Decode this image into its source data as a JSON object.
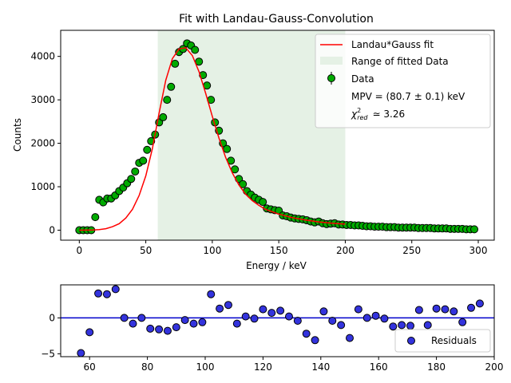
{
  "chart_data": [
    {
      "type": "scatter",
      "title": "Fit with Landau-Gauss-Convolution",
      "xlabel": "Energy / keV",
      "ylabel": "Counts",
      "xlim": [
        -14,
        312
      ],
      "ylim": [
        -230,
        4600
      ],
      "xticks": [
        0,
        50,
        100,
        150,
        200,
        250,
        300
      ],
      "yticks": [
        0,
        1000,
        2000,
        3000,
        4000
      ],
      "grid": false,
      "legend_position": "top-right",
      "fit_range": [
        59,
        200
      ],
      "fit_range_color": "#e5f1e5",
      "data_color": "#00aa00",
      "fit_color": "#ff0000",
      "series": [
        {
          "name": "Data",
          "kind": "points-with-errorbars",
          "x": [
            0,
            3,
            6,
            9,
            12,
            15,
            18,
            21,
            24,
            27,
            30,
            33,
            36,
            39,
            42,
            45,
            48,
            51,
            54,
            57,
            60,
            63,
            66,
            69,
            72,
            75,
            78,
            81,
            84,
            87,
            90,
            93,
            96,
            99,
            102,
            105,
            108,
            111,
            114,
            117,
            120,
            123,
            126,
            129,
            132,
            135,
            138,
            141,
            144,
            147,
            150,
            153,
            156,
            159,
            162,
            165,
            168,
            171,
            174,
            177,
            180,
            183,
            186,
            189,
            192,
            195,
            198,
            201,
            204,
            207,
            210,
            213,
            216,
            219,
            222,
            225,
            228,
            231,
            234,
            237,
            240,
            243,
            246,
            249,
            252,
            255,
            258,
            261,
            264,
            267,
            270,
            273,
            276,
            279,
            282,
            285,
            288,
            291,
            294,
            297
          ],
          "y": [
            0,
            0,
            0,
            0,
            300,
            700,
            640,
            730,
            730,
            800,
            900,
            980,
            1080,
            1180,
            1350,
            1550,
            1600,
            1850,
            2050,
            2200,
            2480,
            2600,
            3000,
            3300,
            3830,
            4100,
            4170,
            4300,
            4250,
            4150,
            3880,
            3570,
            3330,
            3000,
            2480,
            2290,
            2000,
            1870,
            1600,
            1400,
            1180,
            1060,
            900,
            820,
            750,
            700,
            650,
            500,
            480,
            460,
            450,
            340,
            320,
            290,
            270,
            260,
            250,
            230,
            200,
            180,
            200,
            160,
            140,
            150,
            160,
            130,
            130,
            120,
            120,
            110,
            110,
            100,
            90,
            90,
            80,
            80,
            80,
            70,
            70,
            70,
            60,
            60,
            60,
            60,
            60,
            50,
            50,
            50,
            50,
            40,
            40,
            40,
            40,
            30,
            30,
            30,
            30,
            20,
            20,
            20
          ]
        },
        {
          "name": "Landau*Gauss fit",
          "kind": "line",
          "x": [
            0,
            10,
            15,
            20,
            25,
            30,
            35,
            40,
            45,
            50,
            55,
            60,
            65,
            70,
            75,
            80,
            85,
            90,
            95,
            100,
            105,
            110,
            115,
            120,
            125,
            130,
            135,
            140,
            150,
            160,
            170,
            180,
            190,
            200
          ],
          "y": [
            0,
            5,
            15,
            35,
            80,
            150,
            280,
            480,
            800,
            1250,
            1880,
            2700,
            3450,
            3950,
            4170,
            4200,
            4020,
            3650,
            3150,
            2620,
            2120,
            1680,
            1320,
            1040,
            830,
            680,
            570,
            480,
            370,
            290,
            235,
            190,
            160,
            140
          ]
        }
      ],
      "legend": {
        "entries": [
          "Landau*Gauss fit",
          "Range of fitted Data",
          "Data"
        ],
        "annotations": [
          "MPV = (80.7 ± 0.1) keV",
          "χ²_red ≃ 3.26"
        ],
        "mpv_line": "MPV = (80.7 ± 0.1) keV",
        "chi_symbol": "χ",
        "chi_sup": "2",
        "chi_sub": "red",
        "chi_value": "≃ 3.26"
      }
    },
    {
      "type": "scatter",
      "title": "",
      "xlabel": "",
      "ylabel": "",
      "xlim": [
        50,
        200
      ],
      "ylim": [
        -5.4,
        4.6
      ],
      "xticks": [
        60,
        80,
        100,
        120,
        140,
        160,
        180,
        200
      ],
      "yticks": [
        -5,
        0
      ],
      "grid": false,
      "legend_position": "bottom-right",
      "zero_line_color": "#0000cc",
      "point_color": "#3333dd",
      "series": [
        {
          "name": "Residuals",
          "x": [
            57,
            60,
            63,
            66,
            69,
            72,
            75,
            78,
            81,
            84,
            87,
            90,
            93,
            96,
            99,
            102,
            105,
            108,
            111,
            114,
            117,
            120,
            123,
            126,
            129,
            132,
            135,
            138,
            141,
            144,
            147,
            150,
            153,
            156,
            159,
            162,
            165,
            168,
            171,
            174,
            177,
            180,
            183,
            186,
            189,
            192,
            195
          ],
          "y": [
            -4.9,
            -2.0,
            3.4,
            3.3,
            4.0,
            0.0,
            -0.8,
            0.0,
            -1.5,
            -1.6,
            -1.8,
            -1.3,
            -0.3,
            -0.8,
            -0.6,
            3.3,
            1.3,
            1.8,
            -0.8,
            0.2,
            -0.1,
            1.2,
            0.7,
            1.0,
            0.2,
            -0.4,
            -2.2,
            -3.1,
            0.9,
            -0.4,
            -1.0,
            -2.8,
            1.2,
            0.0,
            0.3,
            -0.1,
            -1.2,
            -1.0,
            -1.1,
            1.1,
            -1.0,
            1.3,
            1.2,
            0.9,
            -0.6,
            1.4,
            2.0
          ]
        }
      ],
      "legend": {
        "entries": [
          "Residuals"
        ]
      }
    }
  ]
}
